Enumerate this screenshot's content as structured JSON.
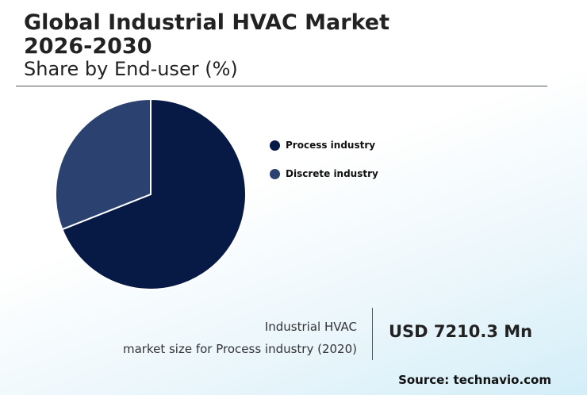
{
  "header": {
    "title": "Global Industrial HVAC Market\n2026-2030",
    "subtitle": "Share by End-user (%)"
  },
  "chart_data": {
    "type": "pie",
    "title": "Global Industrial HVAC Market 2026-2030",
    "subtitle": "Share by End-user (%)",
    "categories": [
      "Process industry",
      "Discrete industry"
    ],
    "values": [
      69,
      31
    ],
    "colors": [
      "#071a45",
      "#2b4170"
    ],
    "legend_position": "right"
  },
  "kpi": {
    "label_line1": "Industrial HVAC",
    "label_line2": "market size for Process industry (2020)",
    "value": "USD 7210.3 Mn"
  },
  "footer": {
    "source": "Source: technavio.com"
  }
}
